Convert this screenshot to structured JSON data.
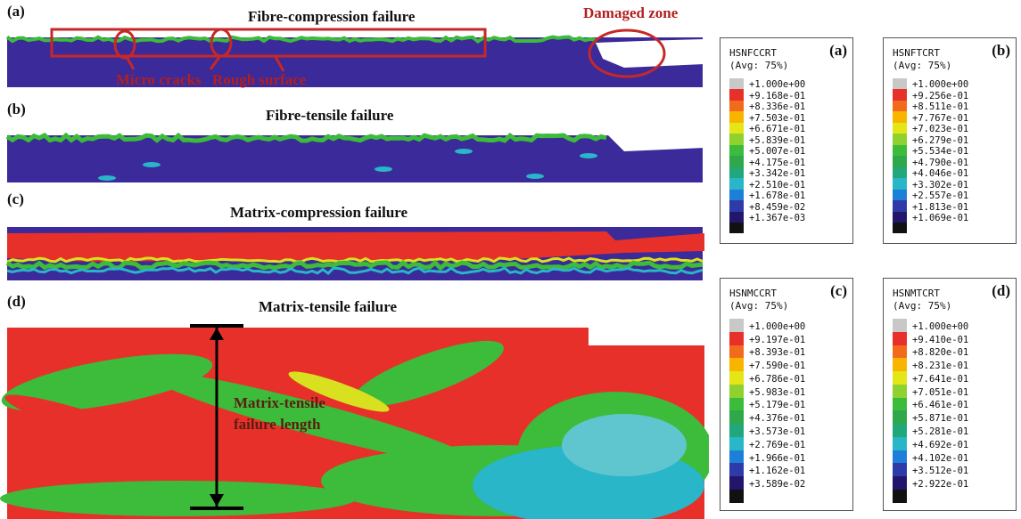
{
  "panels": [
    {
      "label": "(a)",
      "title": "Fibre-compression failure"
    },
    {
      "label": "(b)",
      "title": "Fibre-tensile failure"
    },
    {
      "label": "(c)",
      "title": "Matrix-compression failure"
    },
    {
      "label": "(d)",
      "title": "Matrix-tensile failure"
    }
  ],
  "annotations": {
    "damaged_zone": "Damaged zone",
    "micro_cracks": "Micro cracks",
    "rough_surface": "Rough surface",
    "length": [
      "Matrix-tensile",
      "failure length"
    ]
  },
  "legends": [
    {
      "label": "(a)",
      "name": "HSNFCCRT",
      "avg": "(Avg: 75%)",
      "values": [
        "+1.000e+00",
        "+9.168e-01",
        "+8.336e-01",
        "+7.503e-01",
        "+6.671e-01",
        "+5.839e-01",
        "+5.007e-01",
        "+4.175e-01",
        "+3.342e-01",
        "+2.510e-01",
        "+1.678e-01",
        "+8.459e-02",
        "+1.367e-03"
      ]
    },
    {
      "label": "(b)",
      "name": "HSNFTCRT",
      "avg": "(Avg: 75%)",
      "values": [
        "+1.000e+00",
        "+9.256e-01",
        "+8.511e-01",
        "+7.767e-01",
        "+7.023e-01",
        "+6.279e-01",
        "+5.534e-01",
        "+4.790e-01",
        "+4.046e-01",
        "+3.302e-01",
        "+2.557e-01",
        "+1.813e-01",
        "+1.069e-01"
      ]
    },
    {
      "label": "(c)",
      "name": "HSNMCCRT",
      "avg": "(Avg: 75%)",
      "values": [
        "+1.000e+00",
        "+9.197e-01",
        "+8.393e-01",
        "+7.590e-01",
        "+6.786e-01",
        "+5.983e-01",
        "+5.179e-01",
        "+4.376e-01",
        "+3.573e-01",
        "+2.769e-01",
        "+1.966e-01",
        "+1.162e-01",
        "+3.589e-02"
      ]
    },
    {
      "label": "(d)",
      "name": "HSNMTCRT",
      "avg": "(Avg: 75%)",
      "values": [
        "+1.000e+00",
        "+9.410e-01",
        "+8.820e-01",
        "+8.231e-01",
        "+7.641e-01",
        "+7.051e-01",
        "+6.461e-01",
        "+5.871e-01",
        "+5.281e-01",
        "+4.692e-01",
        "+4.102e-01",
        "+3.512e-01",
        "+2.922e-01"
      ]
    }
  ]
}
